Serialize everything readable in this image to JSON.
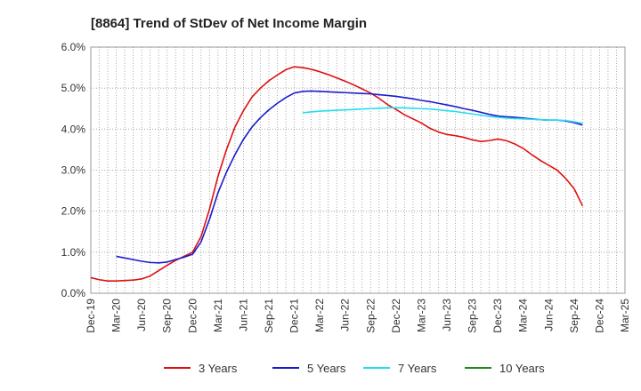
{
  "chart_data": {
    "type": "line",
    "title": "[8864]  Trend of StDev of Net Income Margin",
    "xlabel": "",
    "ylabel": "",
    "grid": true,
    "legend_position": "bottom",
    "ylim": [
      0,
      6
    ],
    "y_ticks": [
      0,
      1,
      2,
      3,
      4,
      5,
      6
    ],
    "y_tick_labels": [
      "0.0%",
      "1.0%",
      "2.0%",
      "3.0%",
      "4.0%",
      "5.0%",
      "6.0%"
    ],
    "x_tick_labels": [
      "Dec-19",
      "Mar-20",
      "Jun-20",
      "Sep-20",
      "Dec-20",
      "Mar-21",
      "Jun-21",
      "Sep-21",
      "Dec-21",
      "Mar-22",
      "Jun-22",
      "Sep-22",
      "Dec-22",
      "Mar-23",
      "Jun-23",
      "Sep-23",
      "Dec-23",
      "Mar-24",
      "Jun-24",
      "Sep-24",
      "Dec-24",
      "Mar-25"
    ],
    "series": [
      {
        "name": "3 Years",
        "color": "#dd1111",
        "points": [
          [
            0,
            0.38
          ],
          [
            1,
            0.33
          ],
          [
            2,
            0.3
          ],
          [
            3,
            0.3
          ],
          [
            4,
            0.31
          ],
          [
            5,
            0.32
          ],
          [
            6,
            0.35
          ],
          [
            7,
            0.42
          ],
          [
            8,
            0.55
          ],
          [
            9,
            0.68
          ],
          [
            10,
            0.8
          ],
          [
            11,
            0.9
          ],
          [
            12,
            1.0
          ],
          [
            13,
            1.38
          ],
          [
            14,
            2.05
          ],
          [
            15,
            2.85
          ],
          [
            16,
            3.5
          ],
          [
            17,
            4.05
          ],
          [
            18,
            4.45
          ],
          [
            19,
            4.78
          ],
          [
            20,
            5.0
          ],
          [
            21,
            5.18
          ],
          [
            22,
            5.32
          ],
          [
            23,
            5.45
          ],
          [
            24,
            5.52
          ],
          [
            25,
            5.5
          ],
          [
            26,
            5.46
          ],
          [
            27,
            5.4
          ],
          [
            28,
            5.33
          ],
          [
            29,
            5.25
          ],
          [
            30,
            5.17
          ],
          [
            31,
            5.08
          ],
          [
            32,
            4.98
          ],
          [
            33,
            4.88
          ],
          [
            34,
            4.75
          ],
          [
            35,
            4.6
          ],
          [
            36,
            4.48
          ],
          [
            37,
            4.35
          ],
          [
            38,
            4.25
          ],
          [
            39,
            4.15
          ],
          [
            40,
            4.02
          ],
          [
            41,
            3.93
          ],
          [
            42,
            3.87
          ],
          [
            43,
            3.84
          ],
          [
            44,
            3.8
          ],
          [
            45,
            3.74
          ],
          [
            46,
            3.7
          ],
          [
            47,
            3.72
          ],
          [
            48,
            3.76
          ],
          [
            49,
            3.72
          ],
          [
            50,
            3.64
          ],
          [
            51,
            3.53
          ],
          [
            52,
            3.38
          ],
          [
            53,
            3.24
          ],
          [
            54,
            3.12
          ],
          [
            55,
            3.0
          ],
          [
            56,
            2.8
          ],
          [
            57,
            2.55
          ],
          [
            58,
            2.13
          ]
        ]
      },
      {
        "name": "5 Years",
        "color": "#1a1acc",
        "points": [
          [
            3,
            0.9
          ],
          [
            4,
            0.86
          ],
          [
            5,
            0.82
          ],
          [
            6,
            0.78
          ],
          [
            7,
            0.75
          ],
          [
            8,
            0.74
          ],
          [
            9,
            0.76
          ],
          [
            10,
            0.82
          ],
          [
            11,
            0.88
          ],
          [
            12,
            0.95
          ],
          [
            13,
            1.25
          ],
          [
            14,
            1.8
          ],
          [
            15,
            2.45
          ],
          [
            16,
            2.95
          ],
          [
            17,
            3.38
          ],
          [
            18,
            3.75
          ],
          [
            19,
            4.05
          ],
          [
            20,
            4.28
          ],
          [
            21,
            4.47
          ],
          [
            22,
            4.63
          ],
          [
            23,
            4.77
          ],
          [
            24,
            4.88
          ],
          [
            25,
            4.92
          ],
          [
            26,
            4.93
          ],
          [
            27,
            4.92
          ],
          [
            28,
            4.91
          ],
          [
            29,
            4.9
          ],
          [
            30,
            4.89
          ],
          [
            31,
            4.88
          ],
          [
            32,
            4.87
          ],
          [
            33,
            4.86
          ],
          [
            34,
            4.84
          ],
          [
            35,
            4.82
          ],
          [
            36,
            4.8
          ],
          [
            37,
            4.77
          ],
          [
            38,
            4.74
          ],
          [
            39,
            4.7
          ],
          [
            40,
            4.67
          ],
          [
            41,
            4.63
          ],
          [
            42,
            4.59
          ],
          [
            43,
            4.55
          ],
          [
            44,
            4.5
          ],
          [
            45,
            4.46
          ],
          [
            46,
            4.41
          ],
          [
            47,
            4.36
          ],
          [
            48,
            4.32
          ],
          [
            49,
            4.3
          ],
          [
            50,
            4.29
          ],
          [
            51,
            4.27
          ],
          [
            52,
            4.25
          ],
          [
            53,
            4.23
          ],
          [
            54,
            4.22
          ],
          [
            55,
            4.22
          ],
          [
            56,
            4.2
          ],
          [
            57,
            4.16
          ],
          [
            58,
            4.1
          ]
        ]
      },
      {
        "name": "7 Years",
        "color": "#22ddee",
        "points": [
          [
            25,
            4.4
          ],
          [
            26,
            4.42
          ],
          [
            27,
            4.44
          ],
          [
            28,
            4.45
          ],
          [
            29,
            4.46
          ],
          [
            30,
            4.47
          ],
          [
            31,
            4.48
          ],
          [
            32,
            4.49
          ],
          [
            33,
            4.5
          ],
          [
            34,
            4.51
          ],
          [
            35,
            4.52
          ],
          [
            36,
            4.52
          ],
          [
            37,
            4.52
          ],
          [
            38,
            4.51
          ],
          [
            39,
            4.5
          ],
          [
            40,
            4.49
          ],
          [
            41,
            4.47
          ],
          [
            42,
            4.45
          ],
          [
            43,
            4.43
          ],
          [
            44,
            4.4
          ],
          [
            45,
            4.37
          ],
          [
            46,
            4.34
          ],
          [
            47,
            4.31
          ],
          [
            48,
            4.29
          ],
          [
            49,
            4.27
          ],
          [
            50,
            4.26
          ],
          [
            51,
            4.25
          ],
          [
            52,
            4.24
          ],
          [
            53,
            4.23
          ],
          [
            54,
            4.22
          ],
          [
            55,
            4.22
          ],
          [
            56,
            4.21
          ],
          [
            57,
            4.18
          ],
          [
            58,
            4.14
          ]
        ]
      },
      {
        "name": "10 Years",
        "color": "#228822",
        "points": []
      }
    ]
  }
}
